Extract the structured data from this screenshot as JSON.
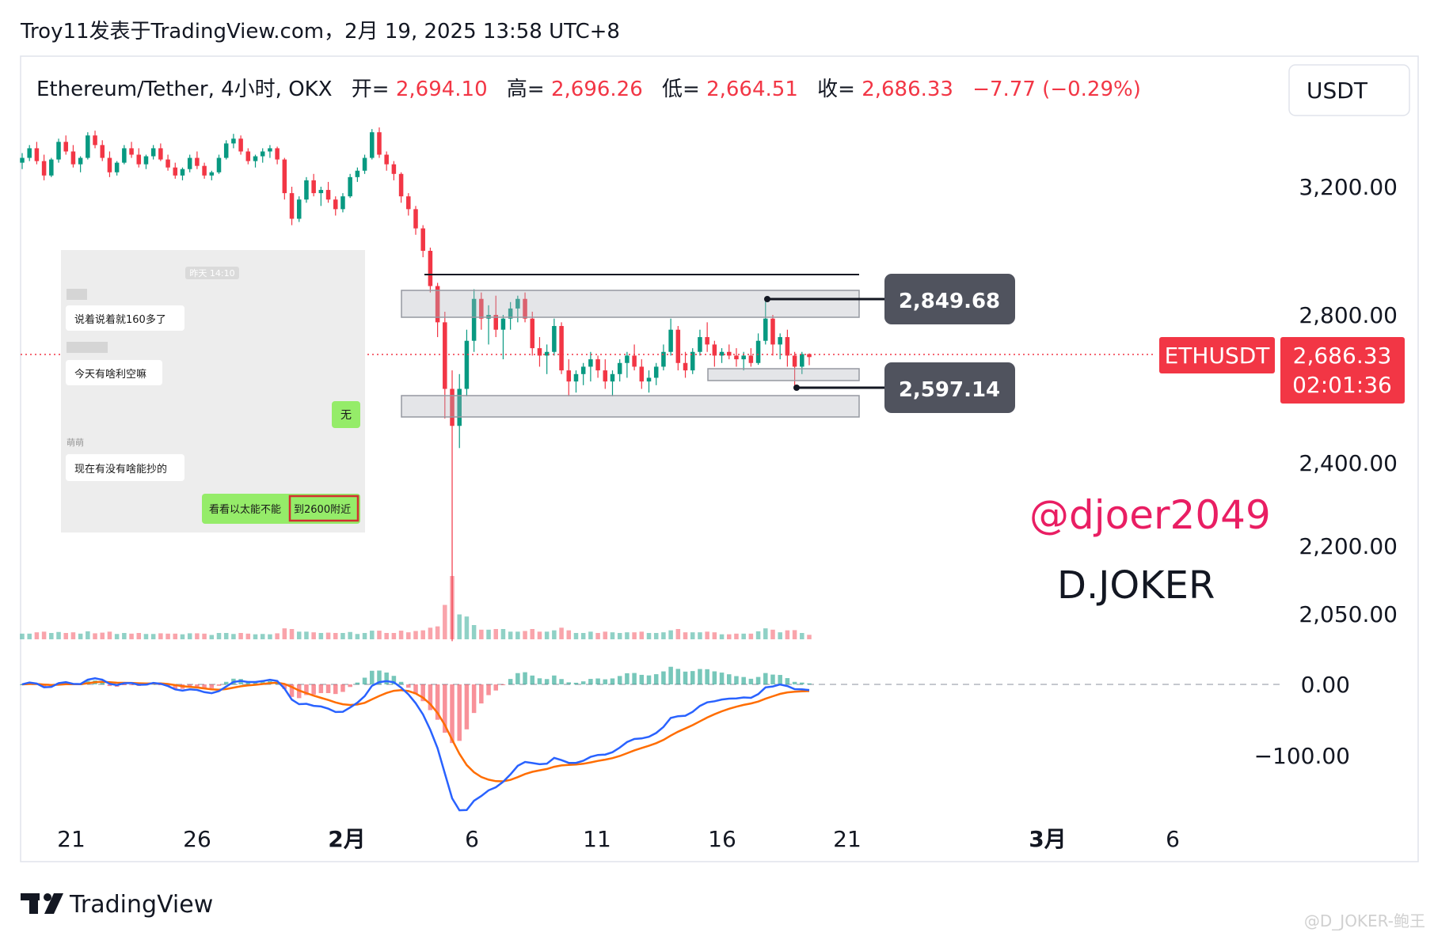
{
  "header": {
    "publish_line": "Troy11发表于TradingView.com，2月 19, 2025 13:58 UTC+8"
  },
  "legend": {
    "symbol": "Ethereum/Tether, 4小时, OKX",
    "open_label": "开=",
    "open_value": "2,694.10",
    "high_label": "高=",
    "high_value": "2,696.26",
    "low_label": "低=",
    "low_value": "2,664.51",
    "close_label": "收=",
    "close_value": "2,686.33",
    "change": "−7.77 (−0.29%)"
  },
  "currency_button": "USDT",
  "price_tag": {
    "symbol": "ETHUSDT",
    "price": "2,686.33",
    "countdown": "02:01:36"
  },
  "level_labels": {
    "upper": "2,849.68",
    "lower": "2,597.14"
  },
  "watermark": {
    "handle": "@djoer2049",
    "name": "D.JOKER"
  },
  "chat_overlay": {
    "timestamp": "昨天 14:10",
    "sender_name": "萌萌",
    "messages": [
      {
        "side": "left",
        "text": "说着说着就160多了"
      },
      {
        "side": "left",
        "text": "今天有啥利空嘛"
      },
      {
        "side": "right",
        "text": "无"
      },
      {
        "side": "left",
        "text": "现在有没有啥能抄的"
      },
      {
        "side": "right",
        "text_before": "看看以太能不能",
        "text_highlight": "到2600附近"
      }
    ]
  },
  "footer": {
    "brand": "TradingView",
    "credit": "@D_JOKER-鲍王"
  },
  "colors": {
    "up": "#089981",
    "down": "#f23645",
    "macd_line": "#2962ff",
    "signal_line": "#ff6d00",
    "watermark_handle": "#e91e63",
    "price_tag": "#f23645",
    "level_label_bg": "#50535e"
  },
  "chart_data": {
    "type": "candlestick",
    "symbol": "ETHUSDT",
    "interval": "4小时",
    "exchange": "OKX",
    "price_axis": {
      "ticks": [
        "3,200.00",
        "2,800.00",
        "2,400.00",
        "2,200.00",
        "2,050.00"
      ],
      "tick_values": [
        3200,
        2800,
        2400,
        2200,
        2050
      ]
    },
    "macd_axis": {
      "ticks": [
        "0.00",
        "−100.00"
      ],
      "tick_values": [
        0,
        -100
      ]
    },
    "time_axis": {
      "labels": [
        "21",
        "26",
        "2月",
        "6",
        "11",
        "16",
        "21",
        "3月",
        "6"
      ]
    },
    "ohlc": [
      [
        3275,
        3305,
        3255,
        3290
      ],
      [
        3290,
        3330,
        3280,
        3320
      ],
      [
        3320,
        3340,
        3270,
        3280
      ],
      [
        3280,
        3300,
        3220,
        3235
      ],
      [
        3235,
        3290,
        3230,
        3285
      ],
      [
        3285,
        3350,
        3275,
        3340
      ],
      [
        3340,
        3360,
        3300,
        3310
      ],
      [
        3310,
        3330,
        3260,
        3270
      ],
      [
        3270,
        3295,
        3245,
        3290
      ],
      [
        3290,
        3370,
        3285,
        3360
      ],
      [
        3360,
        3375,
        3320,
        3330
      ],
      [
        3330,
        3345,
        3280,
        3290
      ],
      [
        3290,
        3310,
        3230,
        3245
      ],
      [
        3245,
        3280,
        3235,
        3275
      ],
      [
        3275,
        3330,
        3270,
        3320
      ],
      [
        3320,
        3340,
        3290,
        3300
      ],
      [
        3300,
        3320,
        3260,
        3270
      ],
      [
        3270,
        3300,
        3255,
        3295
      ],
      [
        3295,
        3330,
        3285,
        3320
      ],
      [
        3320,
        3335,
        3280,
        3285
      ],
      [
        3285,
        3300,
        3250,
        3260
      ],
      [
        3260,
        3275,
        3225,
        3235
      ],
      [
        3235,
        3260,
        3220,
        3255
      ],
      [
        3255,
        3300,
        3245,
        3290
      ],
      [
        3290,
        3310,
        3255,
        3265
      ],
      [
        3265,
        3275,
        3225,
        3235
      ],
      [
        3235,
        3250,
        3220,
        3245
      ],
      [
        3245,
        3300,
        3240,
        3290
      ],
      [
        3290,
        3345,
        3285,
        3335
      ],
      [
        3335,
        3365,
        3320,
        3350
      ],
      [
        3350,
        3360,
        3300,
        3310
      ],
      [
        3310,
        3320,
        3270,
        3280
      ],
      [
        3280,
        3300,
        3260,
        3295
      ],
      [
        3295,
        3320,
        3275,
        3310
      ],
      [
        3310,
        3330,
        3290,
        3320
      ],
      [
        3320,
        3325,
        3270,
        3285
      ],
      [
        3285,
        3290,
        3160,
        3180
      ],
      [
        3180,
        3200,
        3080,
        3100
      ],
      [
        3100,
        3170,
        3090,
        3160
      ],
      [
        3160,
        3230,
        3150,
        3220
      ],
      [
        3220,
        3240,
        3170,
        3180
      ],
      [
        3180,
        3200,
        3140,
        3190
      ],
      [
        3190,
        3215,
        3150,
        3160
      ],
      [
        3160,
        3170,
        3110,
        3130
      ],
      [
        3130,
        3180,
        3120,
        3170
      ],
      [
        3170,
        3240,
        3165,
        3230
      ],
      [
        3230,
        3260,
        3215,
        3250
      ],
      [
        3250,
        3300,
        3240,
        3290
      ],
      [
        3290,
        3380,
        3285,
        3370
      ],
      [
        3370,
        3385,
        3290,
        3300
      ],
      [
        3300,
        3310,
        3250,
        3270
      ],
      [
        3270,
        3280,
        3220,
        3240
      ],
      [
        3240,
        3245,
        3150,
        3170
      ],
      [
        3170,
        3180,
        3110,
        3130
      ],
      [
        3130,
        3140,
        3050,
        3070
      ],
      [
        3070,
        3080,
        2980,
        3000
      ],
      [
        3000,
        3010,
        2870,
        2890
      ],
      [
        2890,
        2900,
        2740,
        2780
      ],
      [
        2780,
        2810,
        2520,
        2600
      ],
      [
        2600,
        2650,
        1990,
        2500
      ],
      [
        2500,
        2640,
        2440,
        2600
      ],
      [
        2600,
        2760,
        2580,
        2730
      ],
      [
        2730,
        2880,
        2700,
        2850
      ],
      [
        2850,
        2870,
        2760,
        2790
      ],
      [
        2790,
        2830,
        2720,
        2800
      ],
      [
        2800,
        2860,
        2740,
        2760
      ],
      [
        2760,
        2800,
        2680,
        2790
      ],
      [
        2790,
        2840,
        2760,
        2820
      ],
      [
        2820,
        2860,
        2780,
        2850
      ],
      [
        2850,
        2870,
        2780,
        2790
      ],
      [
        2790,
        2810,
        2690,
        2710
      ],
      [
        2710,
        2740,
        2660,
        2690
      ],
      [
        2690,
        2720,
        2640,
        2700
      ],
      [
        2700,
        2790,
        2690,
        2770
      ],
      [
        2770,
        2780,
        2640,
        2650
      ],
      [
        2650,
        2680,
        2580,
        2620
      ],
      [
        2620,
        2650,
        2590,
        2640
      ],
      [
        2640,
        2670,
        2610,
        2660
      ],
      [
        2660,
        2700,
        2620,
        2680
      ],
      [
        2680,
        2690,
        2630,
        2650
      ],
      [
        2650,
        2680,
        2600,
        2620
      ],
      [
        2620,
        2650,
        2580,
        2640
      ],
      [
        2640,
        2680,
        2620,
        2670
      ],
      [
        2670,
        2700,
        2630,
        2690
      ],
      [
        2690,
        2720,
        2650,
        2660
      ],
      [
        2660,
        2680,
        2600,
        2620
      ],
      [
        2620,
        2650,
        2590,
        2630
      ],
      [
        2630,
        2670,
        2610,
        2660
      ],
      [
        2660,
        2720,
        2650,
        2700
      ],
      [
        2700,
        2790,
        2690,
        2760
      ],
      [
        2760,
        2770,
        2650,
        2670
      ],
      [
        2670,
        2700,
        2630,
        2650
      ],
      [
        2650,
        2710,
        2640,
        2700
      ],
      [
        2700,
        2760,
        2690,
        2740
      ],
      [
        2740,
        2780,
        2700,
        2720
      ],
      [
        2720,
        2730,
        2660,
        2690
      ],
      [
        2690,
        2710,
        2670,
        2700
      ],
      [
        2700,
        2720,
        2680,
        2690
      ],
      [
        2690,
        2710,
        2660,
        2680
      ],
      [
        2680,
        2700,
        2650,
        2690
      ],
      [
        2690,
        2710,
        2660,
        2670
      ],
      [
        2670,
        2750,
        2665,
        2730
      ],
      [
        2730,
        2850,
        2720,
        2790
      ],
      [
        2790,
        2800,
        2690,
        2720
      ],
      [
        2720,
        2750,
        2680,
        2740
      ],
      [
        2740,
        2760,
        2660,
        2690
      ],
      [
        2690,
        2700,
        2597,
        2660
      ],
      [
        2660,
        2700,
        2640,
        2694
      ],
      [
        2694,
        2696,
        2664,
        2686
      ]
    ],
    "zones": [
      {
        "label": "2,849.68",
        "price": 2849.68
      },
      {
        "label": "2,597.14",
        "price": 2597.14
      }
    ]
  }
}
